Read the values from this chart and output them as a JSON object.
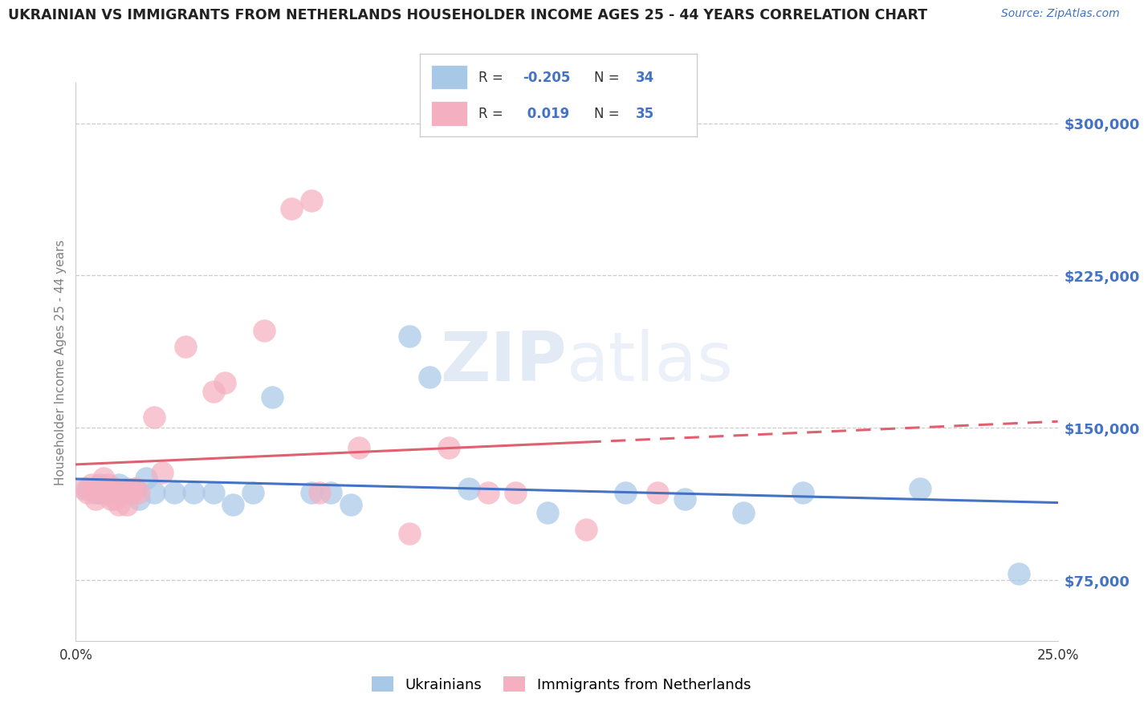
{
  "title": "UKRAINIAN VS IMMIGRANTS FROM NETHERLANDS HOUSEHOLDER INCOME AGES 25 - 44 YEARS CORRELATION CHART",
  "source": "Source: ZipAtlas.com",
  "ylabel": "Householder Income Ages 25 - 44 years",
  "xlim": [
    0.0,
    0.25
  ],
  "ylim": [
    45000,
    320000
  ],
  "yticks": [
    75000,
    150000,
    225000,
    300000
  ],
  "ytick_labels": [
    "$75,000",
    "$150,000",
    "$225,000",
    "$300,000"
  ],
  "xticks": [
    0.0,
    0.05,
    0.1,
    0.15,
    0.2,
    0.25
  ],
  "color_blue": "#A8C8E8",
  "color_pink": "#F4B0C0",
  "line_blue": "#4472C4",
  "line_pink": "#E06070",
  "R_blue": "-0.205",
  "N_blue": "34",
  "R_pink": "0.019",
  "N_pink": "35",
  "label_blue": "Ukrainians",
  "label_pink": "Immigrants from Netherlands",
  "blue_x": [
    0.003,
    0.005,
    0.006,
    0.007,
    0.008,
    0.009,
    0.01,
    0.011,
    0.012,
    0.013,
    0.014,
    0.015,
    0.016,
    0.018,
    0.02,
    0.025,
    0.03,
    0.035,
    0.04,
    0.045,
    0.05,
    0.06,
    0.065,
    0.07,
    0.085,
    0.09,
    0.1,
    0.12,
    0.14,
    0.155,
    0.17,
    0.185,
    0.215,
    0.24
  ],
  "blue_y": [
    120000,
    118000,
    122000,
    120000,
    118000,
    120000,
    118000,
    122000,
    118000,
    120000,
    118000,
    120000,
    115000,
    125000,
    118000,
    118000,
    118000,
    118000,
    112000,
    118000,
    165000,
    118000,
    118000,
    112000,
    195000,
    175000,
    120000,
    108000,
    118000,
    115000,
    108000,
    118000,
    120000,
    78000
  ],
  "pink_x": [
    0.002,
    0.003,
    0.004,
    0.005,
    0.006,
    0.007,
    0.007,
    0.008,
    0.008,
    0.009,
    0.009,
    0.01,
    0.01,
    0.011,
    0.012,
    0.013,
    0.014,
    0.015,
    0.016,
    0.02,
    0.022,
    0.028,
    0.035,
    0.038,
    0.048,
    0.055,
    0.06,
    0.062,
    0.072,
    0.085,
    0.095,
    0.105,
    0.112,
    0.13,
    0.148
  ],
  "pink_y": [
    120000,
    118000,
    122000,
    115000,
    118000,
    120000,
    125000,
    118000,
    122000,
    115000,
    118000,
    115000,
    120000,
    112000,
    118000,
    112000,
    118000,
    120000,
    118000,
    155000,
    128000,
    190000,
    168000,
    172000,
    198000,
    258000,
    262000,
    118000,
    140000,
    98000,
    140000,
    118000,
    118000,
    100000,
    118000
  ]
}
